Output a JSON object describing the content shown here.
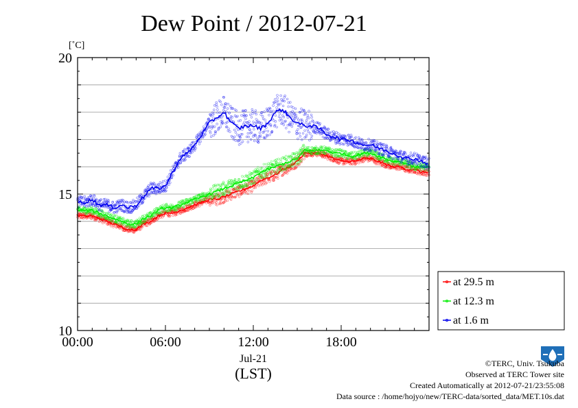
{
  "chart_data": {
    "type": "line",
    "title": "Dew Point / 2012-07-21",
    "ylabel": "[˚C]",
    "ylim": [
      10,
      20
    ],
    "xlim": [
      0,
      24
    ],
    "yticks": [
      {
        "v": 10,
        "label": "10"
      },
      {
        "v": 15,
        "label": "15"
      },
      {
        "v": 20,
        "label": "20"
      }
    ],
    "xticks": [
      {
        "v": 0,
        "label": "00:00"
      },
      {
        "v": 6,
        "label": "06:00"
      },
      {
        "v": 12,
        "label": "12:00"
      },
      {
        "v": 18,
        "label": "18:00"
      }
    ],
    "xdate_label": "Jul-21",
    "xunit_label": "(LST)",
    "grid": "horizontal",
    "legend_position": "bottom-right outside",
    "series": [
      {
        "name": "at 29.5 m",
        "color": "#ff0000",
        "spread": 0.12,
        "x": [
          0,
          0.5,
          1,
          1.5,
          2,
          2.5,
          3,
          3.5,
          4,
          4.5,
          5,
          5.5,
          6,
          6.5,
          7,
          7.5,
          8,
          8.5,
          9,
          9.5,
          10,
          10.5,
          11,
          11.5,
          12,
          12.5,
          13,
          13.5,
          14,
          14.5,
          15,
          15.5,
          16,
          16.5,
          17,
          17.5,
          18,
          18.5,
          19,
          19.5,
          20,
          20.5,
          21,
          21.5,
          22,
          22.5,
          23,
          23.5,
          24
        ],
        "y": [
          14.2,
          14.2,
          14.2,
          14.1,
          14.0,
          13.9,
          13.8,
          13.7,
          13.7,
          13.9,
          14.0,
          14.2,
          14.3,
          14.3,
          14.4,
          14.5,
          14.6,
          14.7,
          14.8,
          14.8,
          14.9,
          15.0,
          15.1,
          15.2,
          15.3,
          15.5,
          15.6,
          15.7,
          15.9,
          16.0,
          16.2,
          16.5,
          16.5,
          16.5,
          16.4,
          16.3,
          16.2,
          16.2,
          16.2,
          16.3,
          16.3,
          16.2,
          16.1,
          16.0,
          16.0,
          15.9,
          15.9,
          15.8,
          15.8
        ]
      },
      {
        "name": "at 12.3 m",
        "color": "#00ee00",
        "spread": 0.14,
        "x": [
          0,
          0.5,
          1,
          1.5,
          2,
          2.5,
          3,
          3.5,
          4,
          4.5,
          5,
          5.5,
          6,
          6.5,
          7,
          7.5,
          8,
          8.5,
          9,
          9.5,
          10,
          10.5,
          11,
          11.5,
          12,
          12.5,
          13,
          13.5,
          14,
          14.5,
          15,
          15.5,
          16,
          16.5,
          17,
          17.5,
          18,
          18.5,
          19,
          19.5,
          20,
          20.5,
          21,
          21.5,
          22,
          22.5,
          23,
          23.5,
          24
        ],
        "y": [
          14.4,
          14.4,
          14.4,
          14.3,
          14.2,
          14.1,
          14.0,
          13.9,
          13.9,
          14.1,
          14.2,
          14.4,
          14.5,
          14.5,
          14.6,
          14.7,
          14.8,
          14.9,
          15.0,
          15.1,
          15.2,
          15.3,
          15.4,
          15.5,
          15.6,
          15.8,
          15.9,
          16.0,
          16.1,
          16.2,
          16.3,
          16.6,
          16.6,
          16.6,
          16.6,
          16.5,
          16.5,
          16.4,
          16.4,
          16.5,
          16.5,
          16.4,
          16.3,
          16.2,
          16.2,
          16.1,
          16.0,
          16.0,
          16.0
        ]
      },
      {
        "name": "at 1.6 m",
        "color": "#0000ee",
        "spread": 0.22,
        "x": [
          0,
          0.5,
          1,
          1.5,
          2,
          2.5,
          3,
          3.5,
          4,
          4.5,
          5,
          5.5,
          6,
          6.5,
          7,
          7.5,
          8,
          8.5,
          9,
          9.5,
          10,
          10.5,
          11,
          11.5,
          12,
          12.5,
          13,
          13.5,
          14,
          14.5,
          15,
          15.5,
          16,
          16.5,
          17,
          17.5,
          18,
          18.5,
          19,
          19.5,
          20,
          20.5,
          21,
          21.5,
          22,
          22.5,
          23,
          23.5,
          24
        ],
        "y": [
          14.7,
          14.7,
          14.8,
          14.6,
          14.6,
          14.5,
          14.6,
          14.5,
          14.6,
          14.9,
          15.2,
          15.2,
          15.3,
          15.8,
          16.3,
          16.5,
          16.8,
          17.2,
          17.6,
          17.8,
          18.0,
          17.6,
          17.4,
          17.5,
          17.5,
          17.4,
          17.6,
          18.0,
          18.1,
          17.8,
          17.6,
          17.5,
          17.5,
          17.4,
          17.2,
          17.1,
          17.0,
          17.0,
          16.9,
          16.8,
          16.8,
          16.7,
          16.6,
          16.5,
          16.4,
          16.3,
          16.3,
          16.2,
          16.1
        ]
      }
    ]
  },
  "credits": {
    "copyright": "©TERC, Univ. Tsukuba",
    "observed": "Observed at TERC Tower site",
    "created": "Created Automatically at 2012-07-21/23:55:08",
    "source": "Data source : /home/hojyo/new/TERC-data/sorted_data/MET.10s.dat",
    "logo_text": "TERC"
  }
}
